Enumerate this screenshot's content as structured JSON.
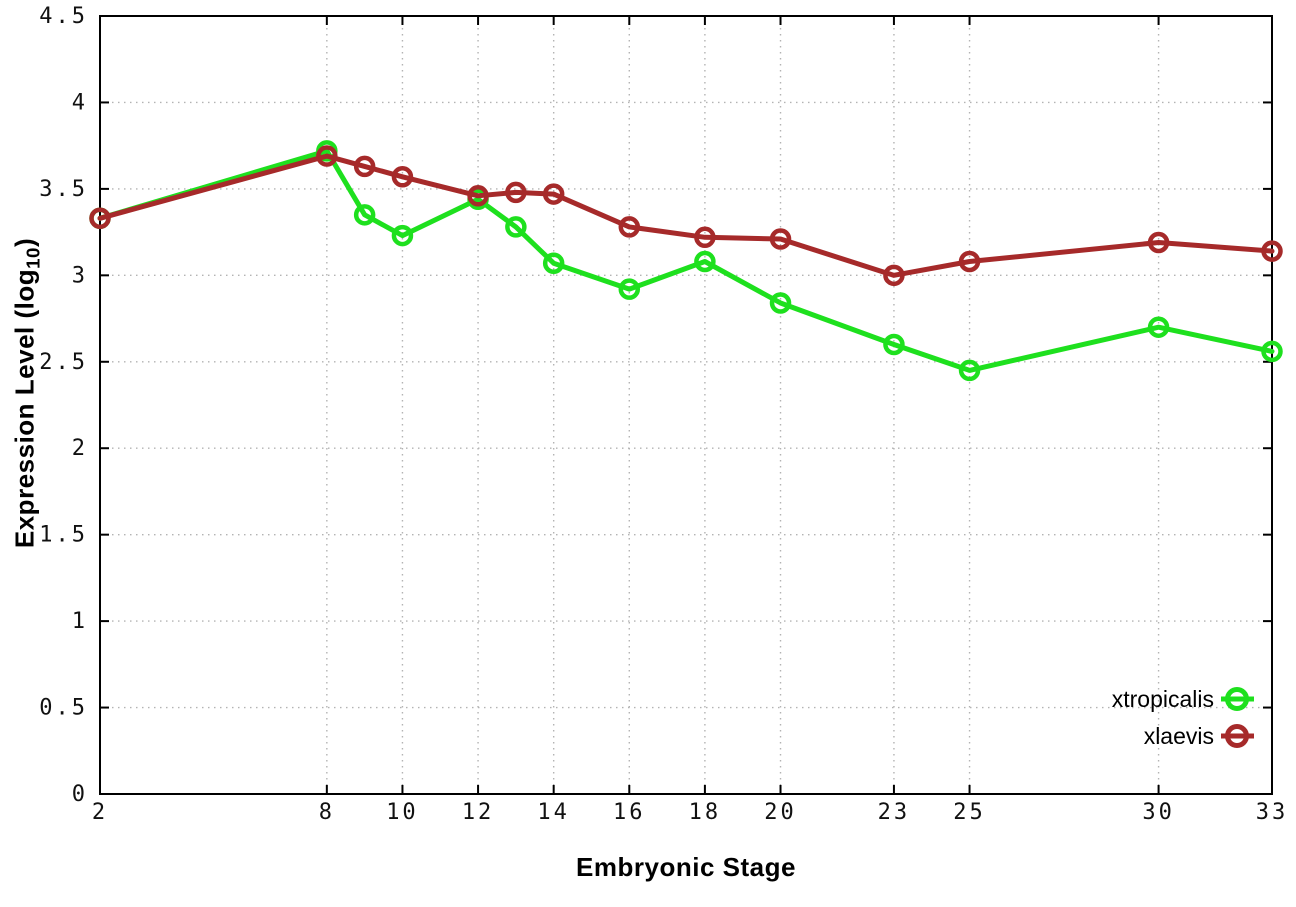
{
  "chart_data": {
    "type": "line",
    "title": "",
    "xlabel": "Embryonic Stage",
    "ylabel": "Expression Level (log10)",
    "ylabel_parts": {
      "pre": "Expression Level (log",
      "sub": "10",
      "post": ")"
    },
    "x": [
      2,
      8,
      9,
      10,
      12,
      13,
      14,
      16,
      18,
      20,
      23,
      25,
      30,
      33
    ],
    "series": [
      {
        "name": "xtropicalis",
        "color": "#1ee01e",
        "marker": "open-circle",
        "values": [
          3.33,
          3.72,
          3.35,
          3.23,
          3.44,
          3.28,
          3.07,
          2.92,
          3.08,
          2.84,
          2.6,
          2.45,
          2.7,
          2.56
        ]
      },
      {
        "name": "xlaevis",
        "color": "#a62a2a",
        "marker": "open-circle",
        "values": [
          3.33,
          3.69,
          3.63,
          3.57,
          3.46,
          3.48,
          3.47,
          3.28,
          3.22,
          3.21,
          3.0,
          3.08,
          3.19,
          3.14
        ]
      }
    ],
    "xlim": [
      2,
      33
    ],
    "ylim": [
      0,
      4.5
    ],
    "xticks": [
      {
        "v": 2,
        "label": "2"
      },
      {
        "v": 8,
        "label": "8"
      },
      {
        "v": 10,
        "label": "10"
      },
      {
        "v": 12,
        "label": "12"
      },
      {
        "v": 14,
        "label": "14"
      },
      {
        "v": 16,
        "label": "16"
      },
      {
        "v": 18,
        "label": "18"
      },
      {
        "v": 20,
        "label": "20"
      },
      {
        "v": 23,
        "label": "23"
      },
      {
        "v": 25,
        "label": "25"
      },
      {
        "v": 30,
        "label": "30"
      },
      {
        "v": 33,
        "label": "33"
      }
    ],
    "yticks": [
      {
        "v": 0,
        "label": "0"
      },
      {
        "v": 0.5,
        "label": "0.5"
      },
      {
        "v": 1,
        "label": "1"
      },
      {
        "v": 1.5,
        "label": "1.5"
      },
      {
        "v": 2,
        "label": "2"
      },
      {
        "v": 2.5,
        "label": "2.5"
      },
      {
        "v": 3,
        "label": "3"
      },
      {
        "v": 3.5,
        "label": "3.5"
      },
      {
        "v": 4,
        "label": "4"
      },
      {
        "v": 4.5,
        "label": "4.5"
      }
    ],
    "grid": true,
    "legend_position": "inside-bottom-right",
    "colors": {
      "background": "#ffffff",
      "grid": "#b3b3b3",
      "axis": "#000000",
      "tick_text": "#111111"
    }
  }
}
